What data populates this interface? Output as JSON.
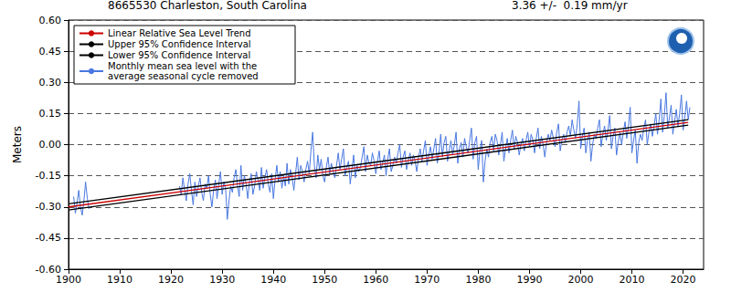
{
  "chart_data": {
    "type": "line",
    "title": "8665530 Charleston, South Carolina",
    "subtitle": "3.36 +/-  0.19 mm/yr",
    "y_label": "Meters",
    "xlim": [
      1900,
      2024
    ],
    "xticks": [
      1900,
      1910,
      1920,
      1930,
      1940,
      1950,
      1960,
      1970,
      1980,
      1990,
      2000,
      2010,
      2020
    ],
    "ylim": [
      -0.6,
      0.6
    ],
    "yticks": [
      {
        "value": -0.6,
        "label": "-0.60"
      },
      {
        "value": -0.45,
        "label": "-0.45"
      },
      {
        "value": -0.3,
        "label": "-0.30"
      },
      {
        "value": -0.15,
        "label": "-0.15"
      },
      {
        "value": 0,
        "label": "0.00"
      },
      {
        "value": 0.15,
        "label": "0.15"
      },
      {
        "value": 0.3,
        "label": "0.30"
      },
      {
        "value": 0.45,
        "label": "0.45"
      },
      {
        "value": 0.6,
        "label": "0.60"
      }
    ],
    "grid": true,
    "legend": "upper left",
    "series": [
      {
        "name": "Linear Relative Sea Level Trend",
        "color": "#cc0000",
        "line_style": "solid",
        "x": [
          1900,
          2021
        ],
        "values": [
          -0.3,
          0.107
        ]
      },
      {
        "name": "Upper 95% Confidence Interval",
        "color": "#000000",
        "line_style": "solid",
        "x": [
          1900,
          2021
        ],
        "values": [
          -0.285,
          0.12
        ]
      },
      {
        "name": "Lower 95% Confidence Interval",
        "color": "#000000",
        "line_style": "solid",
        "x": [
          1900,
          2021
        ],
        "values": [
          -0.315,
          0.094
        ]
      },
      {
        "name": "Monthly mean sea level with the average seasonal cycle removed",
        "color": "#4a78e0",
        "line_style": "solid",
        "x": [
          1901,
          1901.33,
          1901.67,
          1902,
          1902.33,
          1902.67,
          1903,
          1903.33,
          1903.67,
          1904,
          1912,
          1921.67,
          1922,
          1922.33,
          1922.67,
          1923,
          1923.33,
          1923.67,
          1924,
          1924.33,
          1924.67,
          1925,
          1925.33,
          1925.67,
          1926,
          1926.33,
          1926.67,
          1927,
          1927.33,
          1927.67,
          1928,
          1928.33,
          1928.67,
          1929,
          1929.33,
          1929.67,
          1930,
          1930.33,
          1930.67,
          1931,
          1931.33,
          1931.67,
          1932,
          1932.33,
          1932.67,
          1933,
          1933.33,
          1933.67,
          1934,
          1934.33,
          1934.67,
          1935,
          1935.33,
          1935.67,
          1936,
          1936.33,
          1936.67,
          1937,
          1937.33,
          1937.67,
          1938,
          1938.33,
          1938.67,
          1939,
          1939.33,
          1939.67,
          1940,
          1940.33,
          1940.67,
          1941,
          1941.33,
          1941.67,
          1942,
          1942.33,
          1942.67,
          1943,
          1943.33,
          1943.67,
          1944,
          1944.33,
          1944.67,
          1945,
          1945.33,
          1945.67,
          1946,
          1946.33,
          1946.67,
          1947,
          1947.33,
          1947.67,
          1948,
          1948.33,
          1948.67,
          1949,
          1949.33,
          1949.67,
          1950,
          1950.33,
          1950.67,
          1951,
          1951.33,
          1951.67,
          1952,
          1952.33,
          1952.67,
          1953,
          1953.33,
          1953.67,
          1954,
          1954.33,
          1954.67,
          1955,
          1955.33,
          1955.67,
          1956,
          1956.33,
          1956.67,
          1957,
          1957.33,
          1957.67,
          1958,
          1958.33,
          1958.67,
          1959,
          1959.33,
          1959.67,
          1960,
          1960.33,
          1960.67,
          1961,
          1961.33,
          1961.67,
          1962,
          1962.33,
          1962.67,
          1963,
          1963.33,
          1963.67,
          1964,
          1964.33,
          1964.67,
          1965,
          1965.33,
          1965.67,
          1966,
          1966.33,
          1966.67,
          1967,
          1967.33,
          1967.67,
          1968,
          1968.33,
          1968.67,
          1969,
          1969.33,
          1969.67,
          1970,
          1970.33,
          1970.67,
          1971,
          1971.33,
          1971.67,
          1972,
          1972.33,
          1972.67,
          1973,
          1973.33,
          1973.67,
          1974,
          1974.33,
          1974.67,
          1975,
          1975.33,
          1975.67,
          1976,
          1976.33,
          1976.67,
          1977,
          1977.33,
          1977.67,
          1978,
          1978.33,
          1978.67,
          1979,
          1979.33,
          1979.67,
          1980,
          1980.33,
          1980.67,
          1981,
          1981.33,
          1981.67,
          1982,
          1982.33,
          1982.67,
          1983,
          1983.33,
          1983.67,
          1984,
          1984.33,
          1984.67,
          1985,
          1985.33,
          1985.67,
          1986,
          1986.33,
          1986.67,
          1987,
          1987.33,
          1987.67,
          1988,
          1988.33,
          1988.67,
          1989,
          1989.33,
          1989.67,
          1990,
          1990.33,
          1990.67,
          1991,
          1991.33,
          1991.67,
          1992,
          1992.33,
          1992.67,
          1993,
          1993.33,
          1993.67,
          1994,
          1994.33,
          1994.67,
          1995,
          1995.33,
          1995.67,
          1996,
          1996.33,
          1996.67,
          1997,
          1997.33,
          1997.67,
          1998,
          1998.33,
          1998.67,
          1999,
          1999.33,
          1999.67,
          2000,
          2000.33,
          2000.67,
          2001,
          2001.33,
          2001.67,
          2002,
          2002.33,
          2002.67,
          2003,
          2003.33,
          2003.67,
          2004,
          2004.33,
          2004.67,
          2005,
          2005.33,
          2005.67,
          2006,
          2006.33,
          2006.67,
          2007,
          2007.33,
          2007.67,
          2008,
          2008.33,
          2008.67,
          2009,
          2009.33,
          2009.67,
          2010,
          2010.33,
          2010.67,
          2011,
          2011.33,
          2011.67,
          2012,
          2012.33,
          2012.67,
          2013,
          2013.33,
          2013.67,
          2014,
          2014.33,
          2014.67,
          2015,
          2015.33,
          2015.67,
          2016,
          2016.33,
          2016.67,
          2017,
          2017.33,
          2017.67,
          2018,
          2018.33,
          2018.67,
          2019,
          2019.33,
          2019.67,
          2020,
          2020.33,
          2020.67,
          2021,
          2021.33
        ],
        "values": [
          -0.25,
          -0.33,
          -0.28,
          -0.22,
          -0.3,
          -0.34,
          -0.27,
          -0.18,
          -0.26,
          -0.31,
          null,
          -0.2,
          -0.24,
          -0.16,
          -0.22,
          -0.27,
          -0.19,
          -0.14,
          -0.22,
          -0.29,
          -0.18,
          -0.25,
          -0.2,
          -0.16,
          -0.23,
          -0.27,
          -0.19,
          -0.21,
          -0.15,
          -0.24,
          -0.3,
          -0.22,
          -0.17,
          -0.26,
          -0.19,
          -0.13,
          -0.24,
          -0.18,
          -0.21,
          -0.36,
          -0.27,
          -0.2,
          -0.23,
          -0.16,
          -0.12,
          -0.2,
          -0.25,
          -0.1,
          -0.22,
          -0.15,
          -0.19,
          -0.26,
          -0.18,
          -0.14,
          -0.24,
          -0.2,
          -0.13,
          -0.17,
          -0.22,
          -0.11,
          -0.21,
          -0.16,
          -0.12,
          -0.19,
          -0.23,
          -0.14,
          -0.26,
          -0.17,
          -0.1,
          -0.18,
          -0.13,
          -0.21,
          -0.15,
          -0.2,
          -0.09,
          -0.19,
          -0.12,
          -0.16,
          -0.22,
          -0.14,
          -0.06,
          -0.17,
          -0.1,
          -0.13,
          -0.18,
          -0.12,
          -0.08,
          -0.14,
          -0.03,
          0.06,
          -0.1,
          -0.16,
          -0.05,
          -0.12,
          -0.07,
          -0.15,
          -0.18,
          -0.11,
          -0.06,
          -0.14,
          -0.09,
          -0.13,
          -0.16,
          -0.1,
          -0.04,
          -0.12,
          -0.07,
          -0.02,
          -0.15,
          -0.11,
          -0.08,
          -0.19,
          -0.12,
          -0.05,
          -0.16,
          -0.1,
          -0.13,
          -0.11,
          -0.06,
          -0.01,
          -0.13,
          -0.05,
          -0.09,
          -0.1,
          -0.04,
          -0.08,
          -0.14,
          -0.08,
          -0.03,
          -0.12,
          -0.09,
          -0.05,
          -0.15,
          -0.07,
          -0.02,
          -0.13,
          -0.1,
          -0.06,
          -0.09,
          -0.04,
          0.0,
          -0.11,
          -0.06,
          -0.03,
          -0.12,
          -0.08,
          -0.04,
          -0.1,
          -0.05,
          -0.08,
          -0.13,
          -0.06,
          -0.02,
          -0.08,
          -0.03,
          0.02,
          -0.1,
          -0.05,
          -0.01,
          -0.07,
          -0.02,
          0.03,
          -0.09,
          -0.04,
          0.05,
          -0.06,
          0.01,
          0.04,
          -0.08,
          -0.03,
          0.02,
          -0.05,
          0.0,
          0.06,
          -0.09,
          -0.02,
          0.01,
          -0.06,
          0.03,
          -0.01,
          -0.04,
          0.02,
          0.08,
          -0.07,
          0.01,
          0.04,
          -0.12,
          -0.03,
          0.02,
          -0.18,
          -0.08,
          -0.02,
          -0.06,
          0.01,
          0.04,
          -0.03,
          0.05,
          0.02,
          -0.05,
          0.0,
          0.06,
          -0.08,
          -0.02,
          0.03,
          -0.04,
          0.02,
          0.07,
          -0.02,
          0.04,
          0.01,
          -0.05,
          0.0,
          0.03,
          -0.03,
          0.02,
          0.06,
          -0.01,
          0.05,
          0.02,
          -0.04,
          0.03,
          0.08,
          -0.02,
          0.04,
          0.0,
          -0.06,
          0.01,
          0.05,
          0.02,
          0.07,
          0.03,
          -0.01,
          0.06,
          0.1,
          -0.03,
          0.02,
          0.05,
          0.01,
          0.06,
          0.09,
          0.04,
          0.12,
          0.07,
          0.03,
          0.1,
          0.21,
          -0.02,
          0.04,
          0.08,
          -0.04,
          0.02,
          0.06,
          -0.08,
          0.0,
          0.05,
          0.03,
          0.08,
          0.12,
          -0.01,
          0.05,
          0.09,
          0.02,
          0.07,
          0.14,
          -0.02,
          0.04,
          0.08,
          -0.05,
          0.01,
          0.06,
          0.0,
          0.06,
          0.11,
          0.03,
          0.09,
          0.18,
          -0.04,
          0.02,
          0.07,
          -0.09,
          0.01,
          0.05,
          0.02,
          0.08,
          0.12,
          0.0,
          0.06,
          0.1,
          0.04,
          0.09,
          0.15,
          0.05,
          0.12,
          0.22,
          0.06,
          0.14,
          0.25,
          0.08,
          0.13,
          0.19,
          0.05,
          0.11,
          0.17,
          0.09,
          0.15,
          0.24,
          0.07,
          0.13,
          0.21,
          0.12,
          0.18
        ]
      }
    ]
  }
}
